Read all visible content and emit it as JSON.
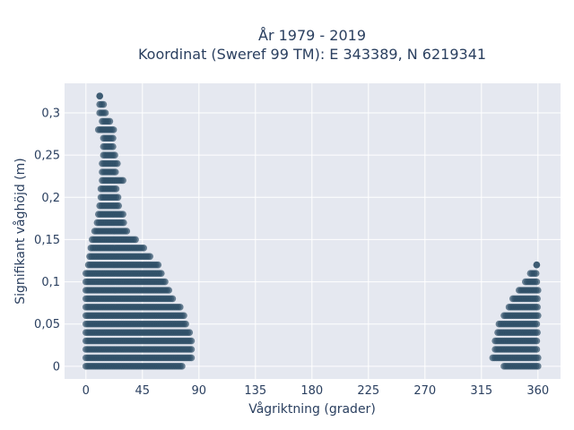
{
  "chart_data": {
    "type": "scatter",
    "title_lines": [
      "År 1979 - 2019",
      "Koordinat (Sweref 99 TM): E 343389, N 6219341"
    ],
    "xlabel": "Vågriktning (grader)",
    "ylabel": "Signifikant våghöjd (m)",
    "xlim": [
      -17,
      378
    ],
    "ylim": [
      -0.015,
      0.335
    ],
    "x_ticks": [
      0,
      45,
      90,
      135,
      180,
      225,
      270,
      315,
      360
    ],
    "x_tick_labels": [
      "0",
      "45",
      "90",
      "135",
      "180",
      "225",
      "270",
      "315",
      "360"
    ],
    "y_ticks": [
      0,
      0.05,
      0.1,
      0.15,
      0.2,
      0.25,
      0.3
    ],
    "y_tick_labels": [
      "0",
      "0,05",
      "0,1",
      "0,15",
      "0,2",
      "0,25",
      "0,3"
    ],
    "grid": true,
    "marker_color": "#2e4f66",
    "plot_bg": "#e5e8f0",
    "clusters": [
      {
        "rows": [
          {
            "y": 0.0,
            "x_min": 0,
            "x_max": 77
          },
          {
            "y": 0.01,
            "x_min": 0,
            "x_max": 84
          },
          {
            "y": 0.02,
            "x_min": 0,
            "x_max": 84
          },
          {
            "y": 0.03,
            "x_min": 0,
            "x_max": 84
          },
          {
            "y": 0.04,
            "x_min": 0,
            "x_max": 83
          },
          {
            "y": 0.05,
            "x_min": 0,
            "x_max": 80
          },
          {
            "y": 0.06,
            "x_min": 0,
            "x_max": 78
          },
          {
            "y": 0.07,
            "x_min": 0,
            "x_max": 75
          },
          {
            "y": 0.08,
            "x_min": 0,
            "x_max": 70
          },
          {
            "y": 0.09,
            "x_min": 0,
            "x_max": 66
          },
          {
            "y": 0.1,
            "x_min": 0,
            "x_max": 64
          },
          {
            "y": 0.11,
            "x_min": 0,
            "x_max": 60
          },
          {
            "y": 0.12,
            "x_min": 2,
            "x_max": 58
          },
          {
            "y": 0.13,
            "x_min": 3,
            "x_max": 52
          },
          {
            "y": 0.14,
            "x_min": 4,
            "x_max": 47
          },
          {
            "y": 0.15,
            "x_min": 5,
            "x_max": 40
          },
          {
            "y": 0.16,
            "x_min": 7,
            "x_max": 33
          },
          {
            "y": 0.17,
            "x_min": 9,
            "x_max": 30
          },
          {
            "y": 0.18,
            "x_min": 10,
            "x_max": 30
          },
          {
            "y": 0.19,
            "x_min": 11,
            "x_max": 27
          },
          {
            "y": 0.2,
            "x_min": 12,
            "x_max": 26
          },
          {
            "y": 0.21,
            "x_min": 12,
            "x_max": 24
          },
          {
            "y": 0.22,
            "x_min": 13,
            "x_max": 30
          },
          {
            "y": 0.23,
            "x_min": 13,
            "x_max": 24
          },
          {
            "y": 0.24,
            "x_min": 13,
            "x_max": 25
          },
          {
            "y": 0.25,
            "x_min": 14,
            "x_max": 24
          },
          {
            "y": 0.26,
            "x_min": 14,
            "x_max": 22
          },
          {
            "y": 0.27,
            "x_min": 14,
            "x_max": 22
          },
          {
            "y": 0.28,
            "x_min": 10,
            "x_max": 22
          },
          {
            "y": 0.29,
            "x_min": 13,
            "x_max": 19
          },
          {
            "y": 0.3,
            "x_min": 11,
            "x_max": 16
          },
          {
            "y": 0.31,
            "x_min": 11,
            "x_max": 14
          },
          {
            "y": 0.32,
            "x_min": 11,
            "x_max": 11
          }
        ]
      },
      {
        "rows": [
          {
            "y": 0.0,
            "x_min": 333,
            "x_max": 360
          },
          {
            "y": 0.01,
            "x_min": 324,
            "x_max": 360
          },
          {
            "y": 0.02,
            "x_min": 326,
            "x_max": 360
          },
          {
            "y": 0.03,
            "x_min": 326,
            "x_max": 360
          },
          {
            "y": 0.04,
            "x_min": 328,
            "x_max": 360
          },
          {
            "y": 0.05,
            "x_min": 329,
            "x_max": 360
          },
          {
            "y": 0.06,
            "x_min": 333,
            "x_max": 360
          },
          {
            "y": 0.07,
            "x_min": 337,
            "x_max": 360
          },
          {
            "y": 0.08,
            "x_min": 340,
            "x_max": 360
          },
          {
            "y": 0.09,
            "x_min": 345,
            "x_max": 360
          },
          {
            "y": 0.1,
            "x_min": 350,
            "x_max": 360
          },
          {
            "y": 0.11,
            "x_min": 354,
            "x_max": 359
          },
          {
            "y": 0.12,
            "x_min": 359,
            "x_max": 359
          }
        ]
      }
    ]
  }
}
